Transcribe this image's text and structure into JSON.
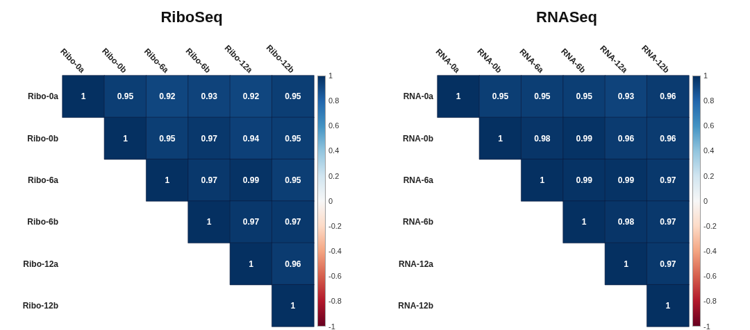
{
  "chart_data": [
    {
      "type": "heatmap",
      "title": "RiboSeq",
      "categories": [
        "Ribo-0a",
        "Ribo-0b",
        "Ribo-6a",
        "Ribo-6b",
        "Ribo-12a",
        "Ribo-12b"
      ],
      "y_categories": [
        "Ribo-0a",
        "Ribo-0b",
        "Ribo-6a",
        "Ribo-6b",
        "Ribo-12a",
        "Ribo-12b"
      ],
      "cells": [
        [
          1,
          0.95,
          0.92,
          0.93,
          0.92,
          0.95
        ],
        [
          null,
          1,
          0.95,
          0.97,
          0.94,
          0.95
        ],
        [
          null,
          null,
          1,
          0.97,
          0.99,
          0.95
        ],
        [
          null,
          null,
          null,
          1,
          0.97,
          0.97
        ],
        [
          null,
          null,
          null,
          null,
          1,
          0.96
        ],
        [
          null,
          null,
          null,
          null,
          null,
          1
        ]
      ],
      "data_labels": true,
      "clim": [
        -1,
        1
      ],
      "cticks": [
        -1,
        -0.8,
        -0.6,
        -0.4,
        -0.2,
        0,
        0.2,
        0.4,
        0.6,
        0.8,
        1
      ]
    },
    {
      "type": "heatmap",
      "title": "RNASeq",
      "categories": [
        "RNA-0a",
        "RNA-0b",
        "RNA-6a",
        "RNA-6b",
        "RNA-12a",
        "RNA-12b"
      ],
      "y_categories": [
        "RNA-0a",
        "RNA-0b",
        "RNA-6a",
        "RNA-6b",
        "RNA-12a",
        "RNA-12b"
      ],
      "cells": [
        [
          1,
          0.95,
          0.95,
          0.95,
          0.93,
          0.96
        ],
        [
          null,
          1,
          0.98,
          0.99,
          0.96,
          0.96
        ],
        [
          null,
          null,
          1,
          0.99,
          0.99,
          0.97
        ],
        [
          null,
          null,
          null,
          1,
          0.98,
          0.97
        ],
        [
          null,
          null,
          null,
          null,
          1,
          0.97
        ],
        [
          null,
          null,
          null,
          null,
          null,
          1
        ]
      ],
      "data_labels": true,
      "clim": [
        -1,
        1
      ],
      "cticks": [
        -1,
        -0.8,
        -0.6,
        -0.4,
        -0.2,
        0,
        0.2,
        0.4,
        0.6,
        0.8,
        1
      ]
    }
  ]
}
